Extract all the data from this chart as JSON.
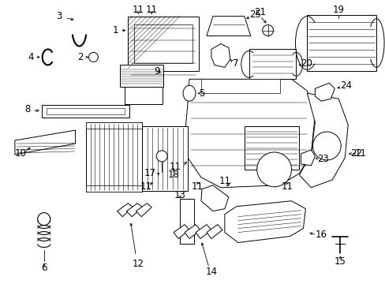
{
  "background_color": "#ffffff",
  "figsize": [
    4.89,
    3.6
  ],
  "dpi": 100,
  "line_color": "#000000",
  "label_fontsize": 8.5,
  "lw": 0.7
}
